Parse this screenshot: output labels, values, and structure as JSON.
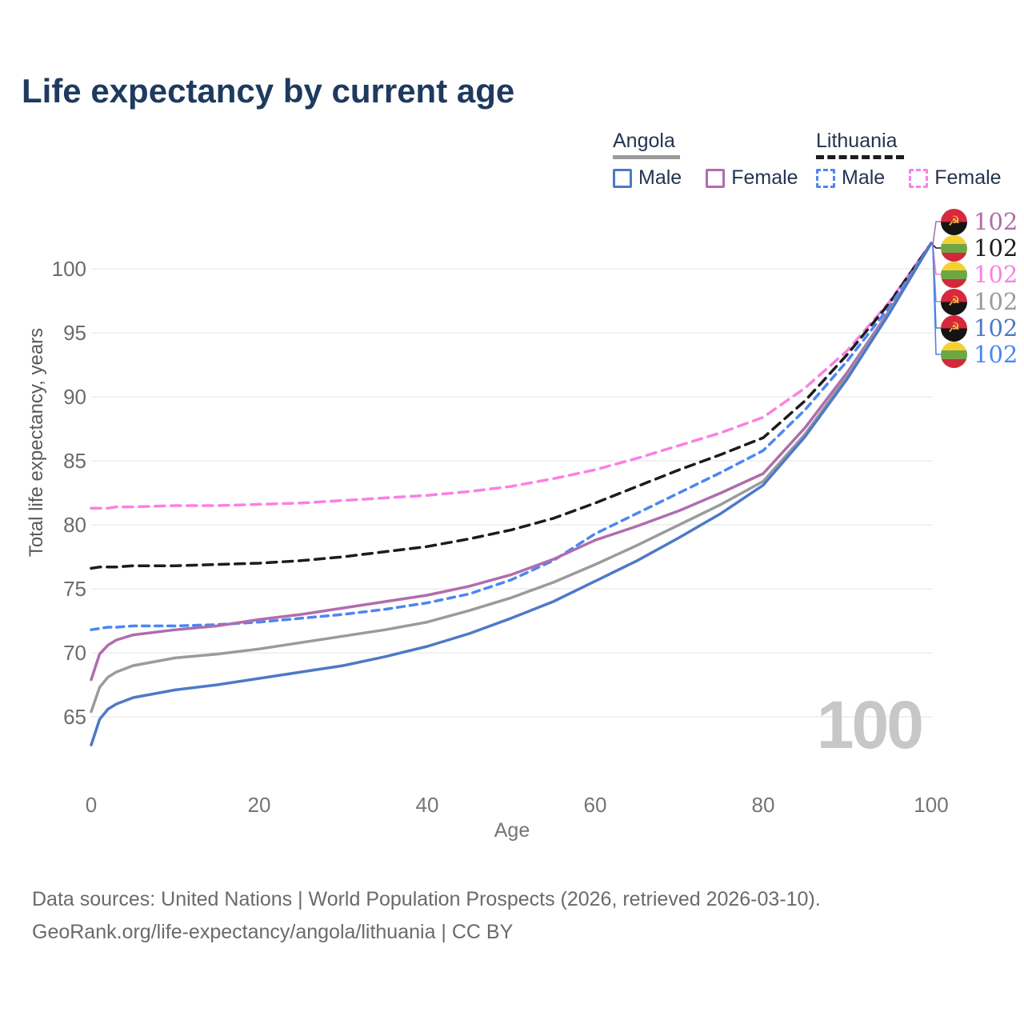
{
  "title": "Life expectancy by current age",
  "legend": {
    "angola": {
      "label": "Angola",
      "male": "Male",
      "female": "Female"
    },
    "lithuania": {
      "label": "Lithuania",
      "male": "Male",
      "female": "Female"
    }
  },
  "watermark_age": "100",
  "footer": {
    "line1": "Data sources: United Nations | World Population Prospects (2026, retrieved 2026-03-10).",
    "line2": "GeoRank.org/life-expectancy/angola/lithuania | CC BY"
  },
  "chart_data": {
    "type": "line",
    "title": "Life expectancy by current age",
    "xlabel": "Age",
    "ylabel": "Total life expectancy, years",
    "x_ticks": [
      0,
      20,
      40,
      60,
      80,
      100
    ],
    "y_ticks": [
      65,
      70,
      75,
      80,
      85,
      90,
      95,
      100
    ],
    "xlim": [
      0,
      100
    ],
    "ylim": [
      61,
      105
    ],
    "grid": "horizontal",
    "legend_position": "top-right",
    "ages": [
      0,
      1,
      2,
      3,
      5,
      10,
      15,
      20,
      25,
      30,
      35,
      40,
      45,
      50,
      55,
      60,
      65,
      70,
      75,
      80,
      85,
      90,
      95,
      100
    ],
    "series": [
      {
        "name": "Angola Female",
        "country": "Angola",
        "sex": "Female",
        "flag": "angola",
        "color": "#b06dac",
        "dashed": false,
        "end_label": "102",
        "values": [
          67.9,
          69.9,
          70.6,
          71.0,
          71.4,
          71.8,
          72.1,
          72.6,
          73.0,
          73.5,
          74.0,
          74.5,
          75.2,
          76.1,
          77.3,
          78.8,
          79.9,
          81.1,
          82.5,
          84.0,
          87.6,
          91.9,
          96.7,
          102
        ]
      },
      {
        "name": "Lithuania Both sexes",
        "country": "Lithuania",
        "sex": "Both",
        "flag": "lithuania",
        "color": "#1c1c1c",
        "dashed": true,
        "end_label": "102",
        "values": [
          76.6,
          76.7,
          76.7,
          76.7,
          76.8,
          76.8,
          76.9,
          77.0,
          77.2,
          77.5,
          77.9,
          78.3,
          78.9,
          79.6,
          80.5,
          81.7,
          83.0,
          84.3,
          85.5,
          86.8,
          89.7,
          93.3,
          97.3,
          102
        ]
      },
      {
        "name": "Lithuania Female",
        "country": "Lithuania",
        "sex": "Female",
        "flag": "lithuania",
        "color": "#fb80e3",
        "dashed": true,
        "end_label": "102",
        "values": [
          81.3,
          81.3,
          81.3,
          81.4,
          81.4,
          81.5,
          81.5,
          81.6,
          81.7,
          81.9,
          82.1,
          82.3,
          82.6,
          83.0,
          83.6,
          84.3,
          85.2,
          86.2,
          87.2,
          88.4,
          90.7,
          93.6,
          97.4,
          102
        ]
      },
      {
        "name": "Angola Both sexes",
        "country": "Angola",
        "sex": "Both",
        "flag": "angola",
        "color": "#9b9b9b",
        "dashed": false,
        "end_label": "102",
        "values": [
          65.4,
          67.3,
          68.1,
          68.5,
          69.0,
          69.6,
          69.9,
          70.3,
          70.8,
          71.3,
          71.8,
          72.4,
          73.3,
          74.3,
          75.5,
          76.9,
          78.4,
          80.0,
          81.6,
          83.4,
          87.1,
          91.6,
          96.6,
          102
        ]
      },
      {
        "name": "Angola Male",
        "country": "Angola",
        "sex": "Male",
        "flag": "angola",
        "color": "#4d79c7",
        "dashed": false,
        "end_label": "102",
        "values": [
          62.8,
          64.8,
          65.6,
          66.0,
          66.5,
          67.1,
          67.5,
          68.0,
          68.5,
          69.0,
          69.7,
          70.5,
          71.5,
          72.7,
          74.0,
          75.6,
          77.2,
          79.0,
          80.9,
          83.1,
          86.9,
          91.4,
          96.5,
          102
        ]
      },
      {
        "name": "Lithuania Male",
        "country": "Lithuania",
        "sex": "Male",
        "flag": "lithuania",
        "color": "#4b87f0",
        "dashed": true,
        "end_label": "102",
        "values": [
          71.8,
          71.9,
          72.0,
          72.0,
          72.1,
          72.1,
          72.2,
          72.4,
          72.7,
          73.0,
          73.4,
          73.9,
          74.6,
          75.7,
          77.2,
          79.3,
          80.9,
          82.5,
          84.1,
          85.8,
          89.0,
          92.8,
          97.0,
          102
        ]
      }
    ],
    "annotation": {
      "text": "100",
      "meaning": "current age counter watermark"
    }
  }
}
